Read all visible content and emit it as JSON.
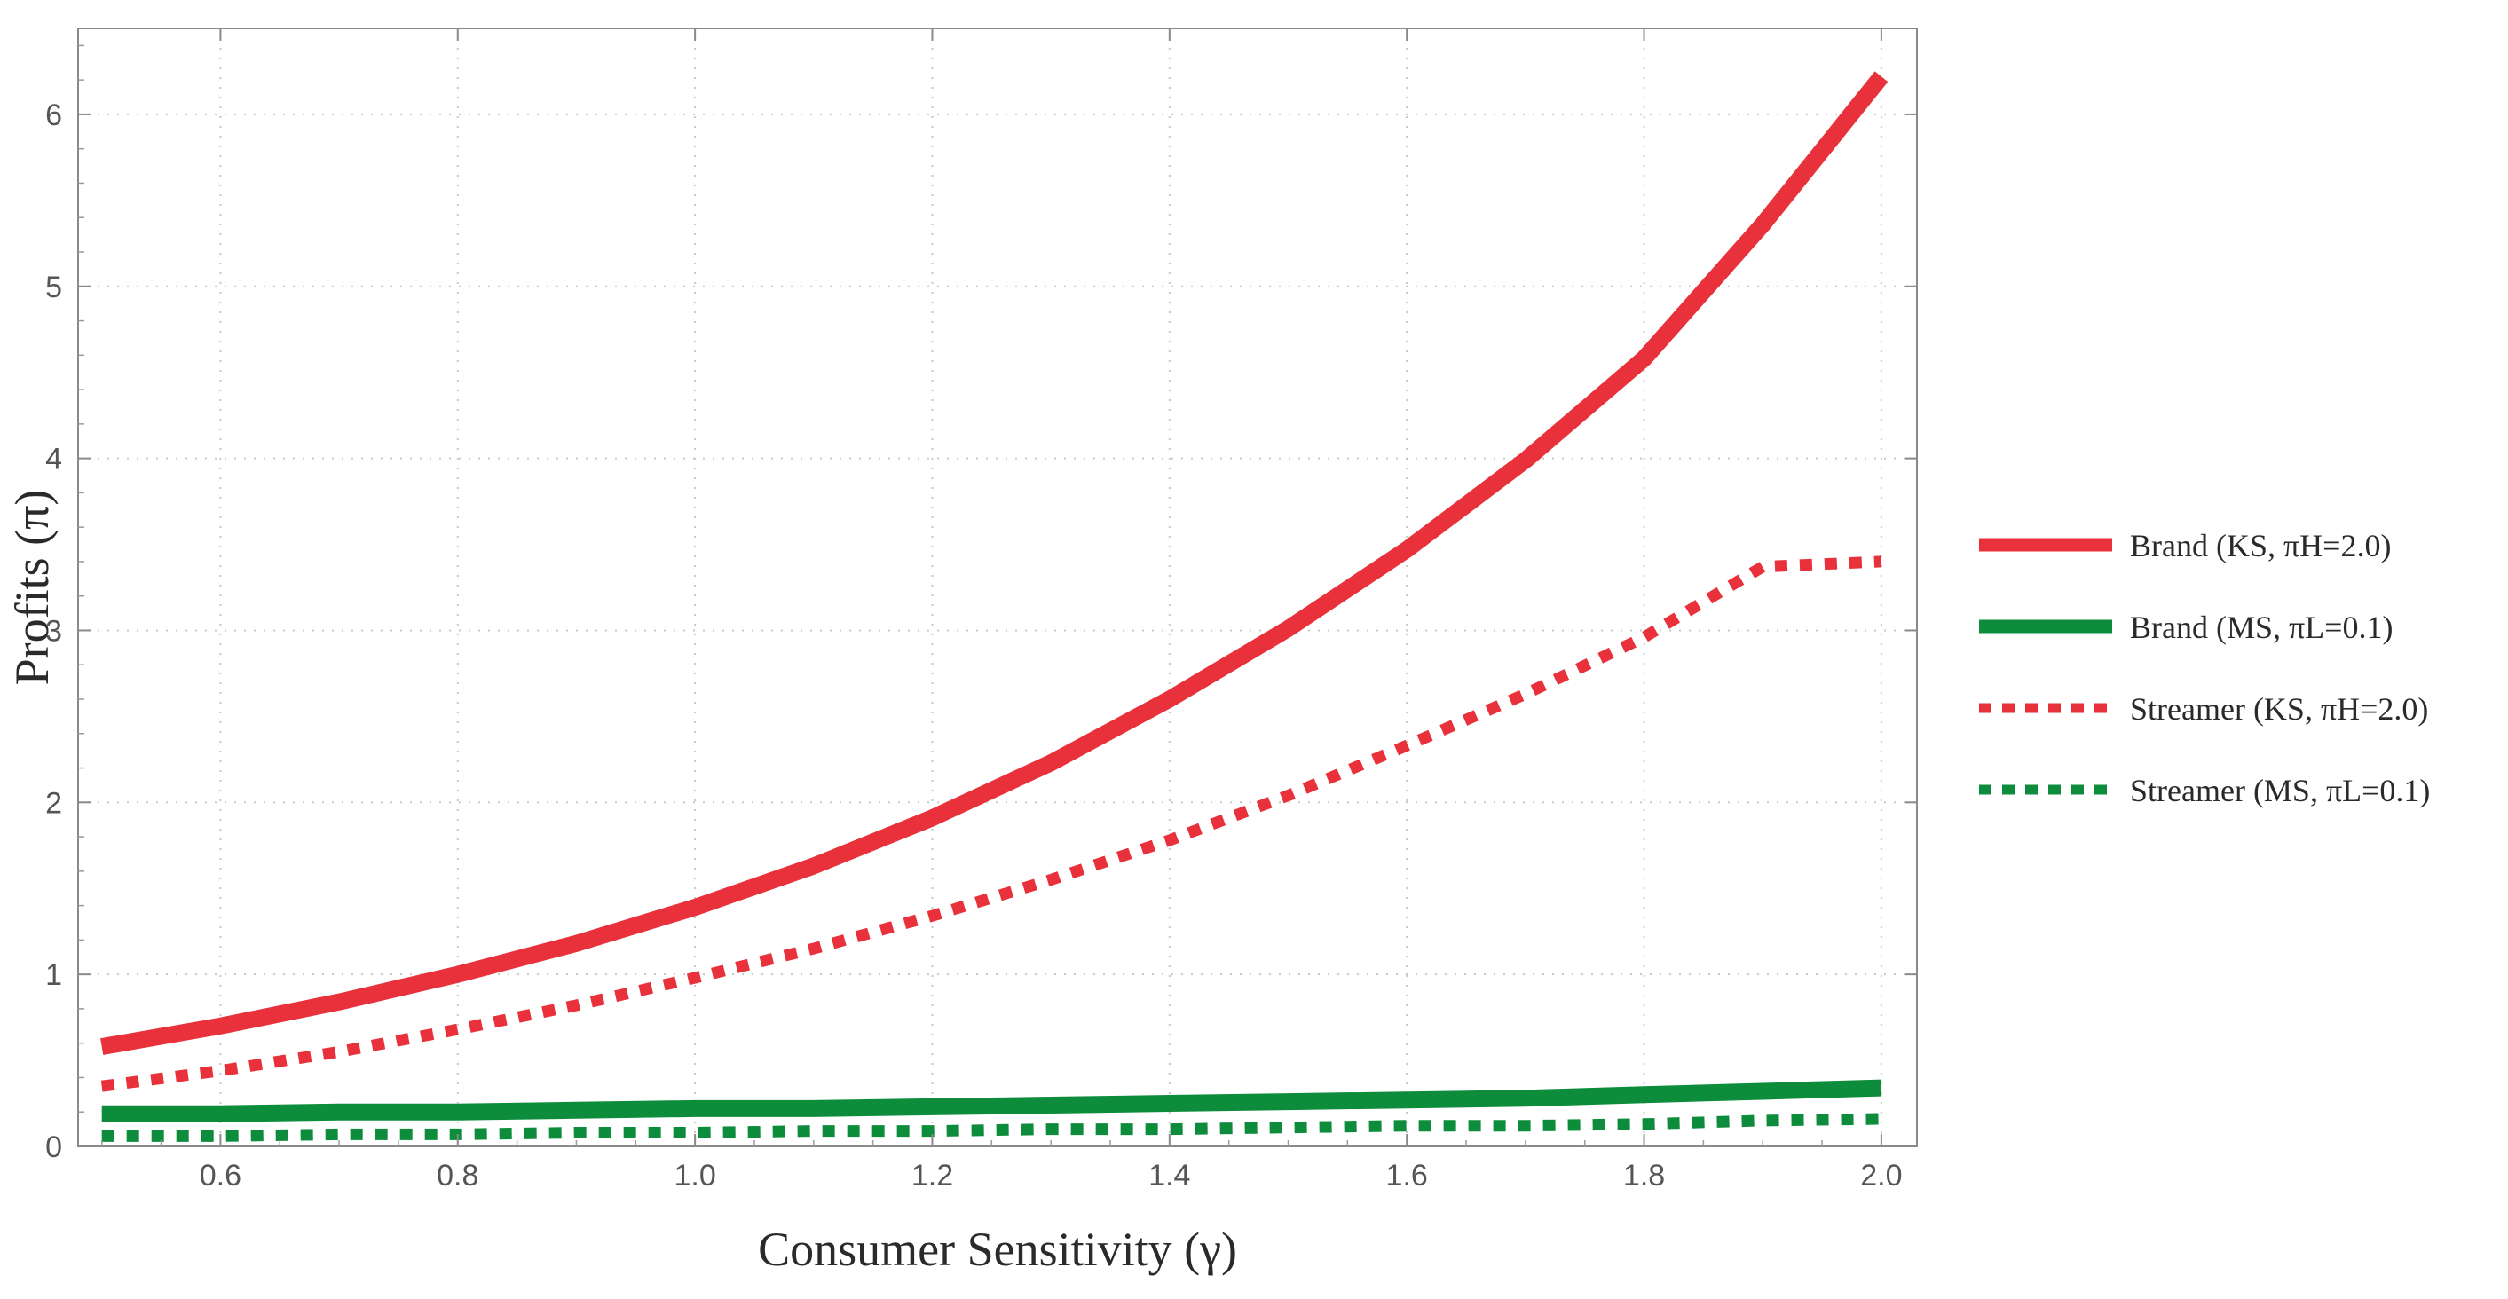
{
  "chart_data": {
    "type": "line",
    "title": "",
    "xlabel": "Consumer Sensitivity (γ)",
    "ylabel": "Profits (π)",
    "xlim": [
      0.48,
      2.03
    ],
    "ylim": [
      0,
      6.5
    ],
    "x_ticks": [
      0.6,
      0.8,
      1.0,
      1.2,
      1.4,
      1.6,
      1.8,
      2.0
    ],
    "x_tick_labels": [
      "0.6",
      "0.8",
      "1.0",
      "1.2",
      "1.4",
      "1.6",
      "1.8",
      "2.0"
    ],
    "y_ticks": [
      0,
      1,
      2,
      3,
      4,
      5,
      6
    ],
    "y_tick_labels": [
      "0",
      "1",
      "2",
      "3",
      "4",
      "5",
      "6"
    ],
    "grid": true,
    "legend_position": "right",
    "x": [
      0.5,
      0.6,
      0.7,
      0.8,
      0.9,
      1.0,
      1.1,
      1.2,
      1.3,
      1.4,
      1.5,
      1.6,
      1.7,
      1.8,
      1.9,
      2.0
    ],
    "series": [
      {
        "name": "Brand (KS, πH=2.0)",
        "color": "#e8313a",
        "style": "solid",
        "values": [
          0.58,
          0.7,
          0.84,
          1.0,
          1.18,
          1.39,
          1.63,
          1.91,
          2.23,
          2.6,
          3.01,
          3.47,
          3.99,
          4.58,
          5.36,
          6.22
        ]
      },
      {
        "name": "Brand (MS, πL=0.1)",
        "color": "#0d8c3c",
        "style": "solid",
        "values": [
          0.19,
          0.19,
          0.2,
          0.2,
          0.21,
          0.22,
          0.22,
          0.23,
          0.24,
          0.25,
          0.26,
          0.27,
          0.28,
          0.3,
          0.32,
          0.34
        ]
      },
      {
        "name": "Streamer (KS, πH=2.0)",
        "color": "#e8313a",
        "style": "dotted",
        "values": [
          0.35,
          0.44,
          0.55,
          0.68,
          0.82,
          0.98,
          1.15,
          1.34,
          1.55,
          1.78,
          2.04,
          2.33,
          2.63,
          2.96,
          3.37,
          3.4
        ]
      },
      {
        "name": "Streamer (MS, πL=0.1)",
        "color": "#0d8c3c",
        "style": "dotted",
        "values": [
          0.06,
          0.06,
          0.07,
          0.07,
          0.08,
          0.08,
          0.09,
          0.09,
          0.1,
          0.1,
          0.11,
          0.12,
          0.12,
          0.13,
          0.15,
          0.16
        ]
      }
    ]
  }
}
